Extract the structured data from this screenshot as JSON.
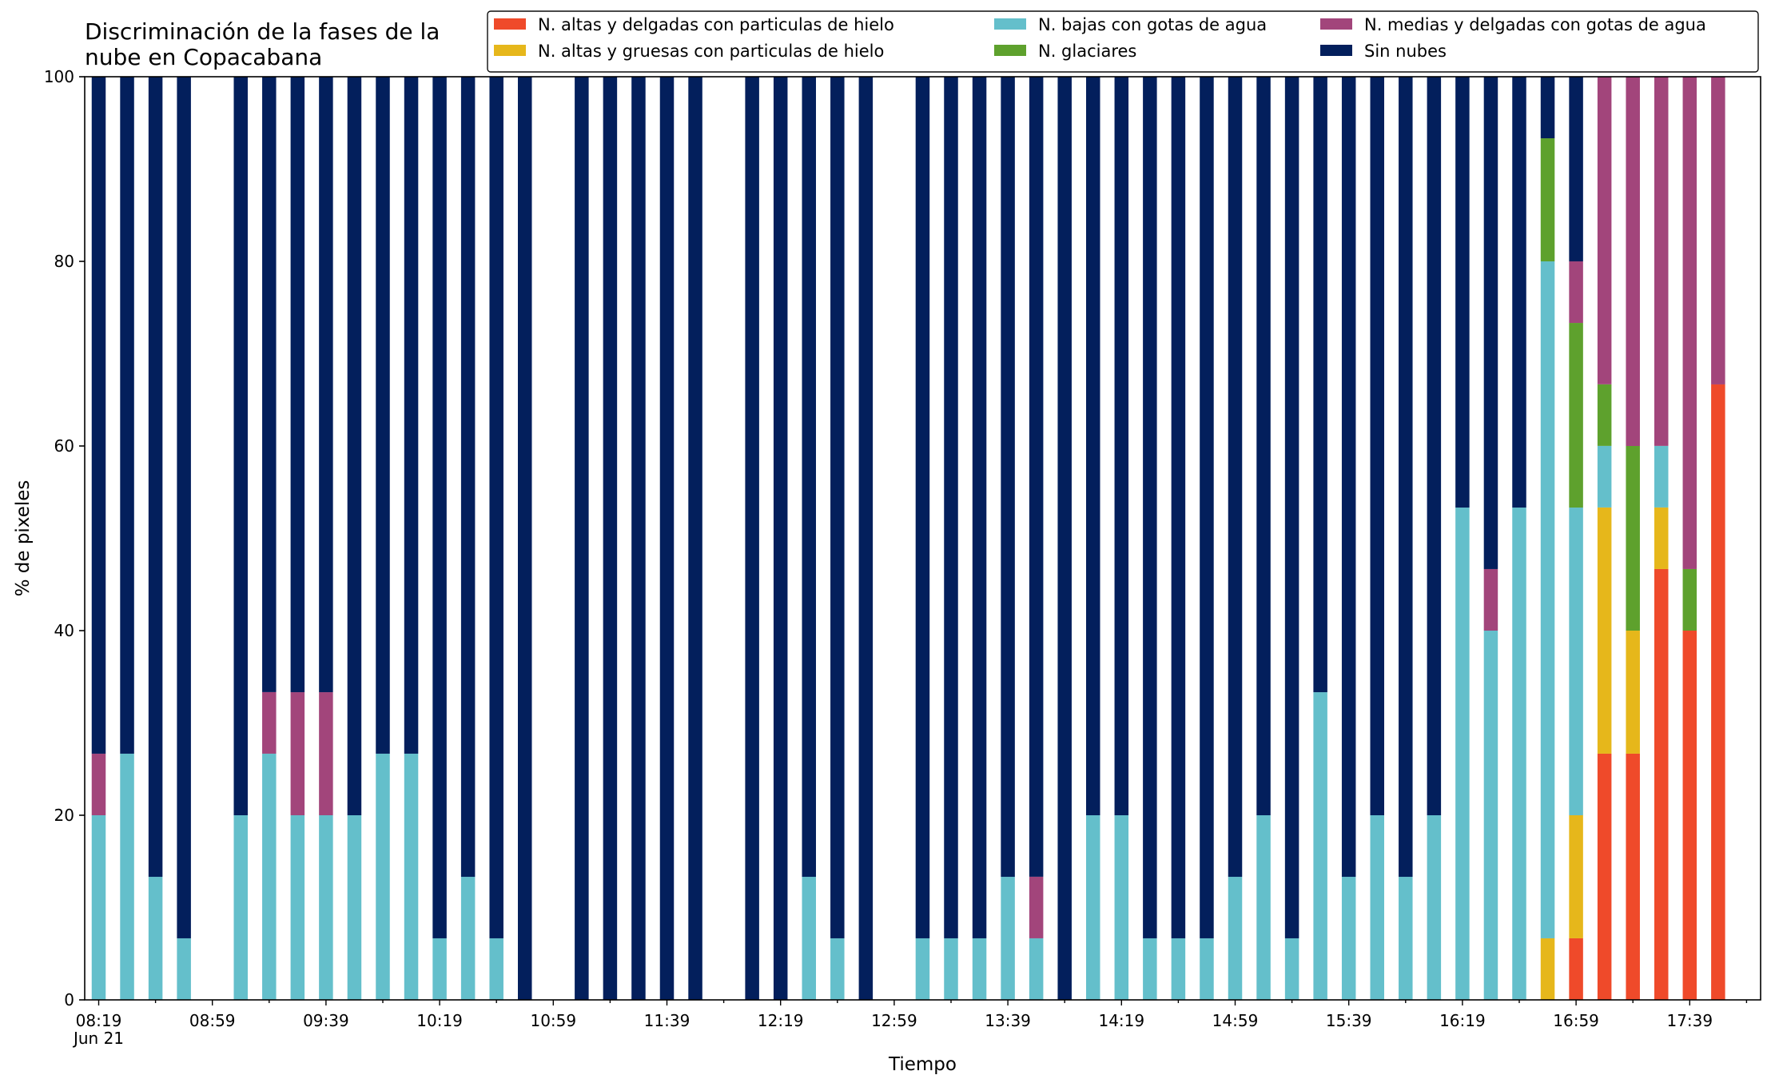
{
  "chart_data": {
    "type": "bar",
    "stacked": true,
    "title": "Discriminación de la fases de la\nnube en Copacabana",
    "xlabel": "Tiempo",
    "ylabel": "% de pixeles",
    "ylim": [
      0,
      100
    ],
    "yticks": [
      0,
      20,
      40,
      60,
      80,
      100
    ],
    "x_start": "08:19",
    "x_step_minutes": 10,
    "x_slots": 59,
    "xtick_labels": [
      {
        "slot": 0,
        "label": "08:19",
        "sublabel": "Jun 21"
      },
      {
        "slot": 4,
        "label": "08:59"
      },
      {
        "slot": 8,
        "label": "09:39"
      },
      {
        "slot": 12,
        "label": "10:19"
      },
      {
        "slot": 16,
        "label": "10:59"
      },
      {
        "slot": 20,
        "label": "11:39"
      },
      {
        "slot": 24,
        "label": "12:19"
      },
      {
        "slot": 28,
        "label": "12:59"
      },
      {
        "slot": 32,
        "label": "13:39"
      },
      {
        "slot": 36,
        "label": "14:19"
      },
      {
        "slot": 40,
        "label": "14:59"
      },
      {
        "slot": 44,
        "label": "15:39"
      },
      {
        "slot": 48,
        "label": "16:19"
      },
      {
        "slot": 52,
        "label": "16:59"
      },
      {
        "slot": 56,
        "label": "17:39"
      }
    ],
    "legend_position": "top-right",
    "legend_order": [
      0,
      1,
      2,
      3,
      4,
      5
    ],
    "series": [
      {
        "name": "N. altas y delgadas con particulas de hielo",
        "color": "#ef4a2a"
      },
      {
        "name": "N. altas y gruesas con particulas de hielo",
        "color": "#e6b71b"
      },
      {
        "name": "N. bajas con gotas de agua",
        "color": "#64bfcb"
      },
      {
        "name": "N. glaciares",
        "color": "#5ea12d"
      },
      {
        "name": "N. medias y delgadas con gotas de agua",
        "color": "#a2457b"
      },
      {
        "name": "Sin nubes",
        "color": "#031f5c"
      }
    ],
    "bars": [
      {
        "slot": 0,
        "values": [
          0,
          0,
          20,
          0,
          6.67,
          73.33
        ]
      },
      {
        "slot": 1,
        "values": [
          0,
          0,
          26.67,
          0,
          0,
          73.33
        ]
      },
      {
        "slot": 2,
        "values": [
          0,
          0,
          13.33,
          0,
          0,
          86.67
        ]
      },
      {
        "slot": 3,
        "values": [
          0,
          0,
          6.67,
          0,
          0,
          93.33
        ]
      },
      {
        "slot": 5,
        "values": [
          0,
          0,
          20,
          0,
          0,
          80
        ]
      },
      {
        "slot": 6,
        "values": [
          0,
          0,
          26.67,
          0,
          6.67,
          66.67
        ]
      },
      {
        "slot": 7,
        "values": [
          0,
          0,
          20,
          0,
          13.33,
          66.67
        ]
      },
      {
        "slot": 8,
        "values": [
          0,
          0,
          20,
          0,
          13.33,
          66.67
        ]
      },
      {
        "slot": 9,
        "values": [
          0,
          0,
          20,
          0,
          0,
          80
        ]
      },
      {
        "slot": 10,
        "values": [
          0,
          0,
          26.67,
          0,
          0,
          73.33
        ]
      },
      {
        "slot": 11,
        "values": [
          0,
          0,
          26.67,
          0,
          0,
          73.33
        ]
      },
      {
        "slot": 12,
        "values": [
          0,
          0,
          6.67,
          0,
          0,
          93.33
        ]
      },
      {
        "slot": 13,
        "values": [
          0,
          0,
          13.33,
          0,
          0,
          86.67
        ]
      },
      {
        "slot": 14,
        "values": [
          0,
          0,
          6.67,
          0,
          0,
          93.33
        ]
      },
      {
        "slot": 15,
        "values": [
          0,
          0,
          0,
          0,
          0,
          100
        ]
      },
      {
        "slot": 17,
        "values": [
          0,
          0,
          0,
          0,
          0,
          100
        ]
      },
      {
        "slot": 18,
        "values": [
          0,
          0,
          0,
          0,
          0,
          100
        ]
      },
      {
        "slot": 19,
        "values": [
          0,
          0,
          0,
          0,
          0,
          100
        ]
      },
      {
        "slot": 20,
        "values": [
          0,
          0,
          0,
          0,
          0,
          100
        ]
      },
      {
        "slot": 21,
        "values": [
          0,
          0,
          0,
          0,
          0,
          100
        ]
      },
      {
        "slot": 23,
        "values": [
          0,
          0,
          0,
          0,
          0,
          100
        ]
      },
      {
        "slot": 24,
        "values": [
          0,
          0,
          0,
          0,
          0,
          100
        ]
      },
      {
        "slot": 25,
        "values": [
          0,
          0,
          13.33,
          0,
          0,
          86.67
        ]
      },
      {
        "slot": 26,
        "values": [
          0,
          0,
          6.67,
          0,
          0,
          93.33
        ]
      },
      {
        "slot": 27,
        "values": [
          0,
          0,
          0,
          0,
          0,
          100
        ]
      },
      {
        "slot": 29,
        "values": [
          0,
          0,
          6.67,
          0,
          0,
          93.33
        ]
      },
      {
        "slot": 30,
        "values": [
          0,
          0,
          6.67,
          0,
          0,
          93.33
        ]
      },
      {
        "slot": 31,
        "values": [
          0,
          0,
          6.67,
          0,
          0,
          93.33
        ]
      },
      {
        "slot": 32,
        "values": [
          0,
          0,
          13.33,
          0,
          0,
          86.67
        ]
      },
      {
        "slot": 33,
        "values": [
          0,
          0,
          6.67,
          0,
          6.67,
          86.67
        ]
      },
      {
        "slot": 34,
        "values": [
          0,
          0,
          0,
          0,
          0,
          100
        ]
      },
      {
        "slot": 35,
        "values": [
          0,
          0,
          20,
          0,
          0,
          80
        ]
      },
      {
        "slot": 36,
        "values": [
          0,
          0,
          20,
          0,
          0,
          80
        ]
      },
      {
        "slot": 37,
        "values": [
          0,
          0,
          6.67,
          0,
          0,
          93.33
        ]
      },
      {
        "slot": 38,
        "values": [
          0,
          0,
          6.67,
          0,
          0,
          93.33
        ]
      },
      {
        "slot": 39,
        "values": [
          0,
          0,
          6.67,
          0,
          0,
          93.33
        ]
      },
      {
        "slot": 40,
        "values": [
          0,
          0,
          13.33,
          0,
          0,
          86.67
        ]
      },
      {
        "slot": 41,
        "values": [
          0,
          0,
          20,
          0,
          0,
          80
        ]
      },
      {
        "slot": 42,
        "values": [
          0,
          0,
          6.67,
          0,
          0,
          93.33
        ]
      },
      {
        "slot": 43,
        "values": [
          0,
          0,
          33.33,
          0,
          0,
          66.67
        ]
      },
      {
        "slot": 44,
        "values": [
          0,
          0,
          13.33,
          0,
          0,
          86.67
        ]
      },
      {
        "slot": 45,
        "values": [
          0,
          0,
          20,
          0,
          0,
          80
        ]
      },
      {
        "slot": 46,
        "values": [
          0,
          0,
          13.33,
          0,
          0,
          86.67
        ]
      },
      {
        "slot": 47,
        "values": [
          0,
          0,
          20,
          0,
          0,
          80
        ]
      },
      {
        "slot": 48,
        "values": [
          0,
          0,
          53.33,
          0,
          0,
          46.67
        ]
      },
      {
        "slot": 49,
        "values": [
          0,
          0,
          40,
          0,
          6.67,
          53.33
        ]
      },
      {
        "slot": 50,
        "values": [
          0,
          0,
          53.33,
          0,
          0,
          46.67
        ]
      },
      {
        "slot": 51,
        "values": [
          0,
          6.67,
          73.33,
          13.33,
          0,
          6.67
        ]
      },
      {
        "slot": 52,
        "values": [
          6.67,
          13.33,
          33.33,
          20,
          6.67,
          20
        ]
      },
      {
        "slot": 53,
        "values": [
          26.67,
          26.67,
          6.67,
          6.67,
          33.33,
          0
        ]
      },
      {
        "slot": 54,
        "values": [
          26.67,
          13.33,
          0,
          20,
          40,
          0
        ]
      },
      {
        "slot": 55,
        "values": [
          46.67,
          6.67,
          6.67,
          0,
          40,
          0
        ]
      },
      {
        "slot": 56,
        "values": [
          40,
          0,
          0,
          6.67,
          53.33,
          0
        ]
      },
      {
        "slot": 57,
        "values": [
          66.67,
          0,
          0,
          0,
          33.33,
          0
        ]
      }
    ]
  }
}
